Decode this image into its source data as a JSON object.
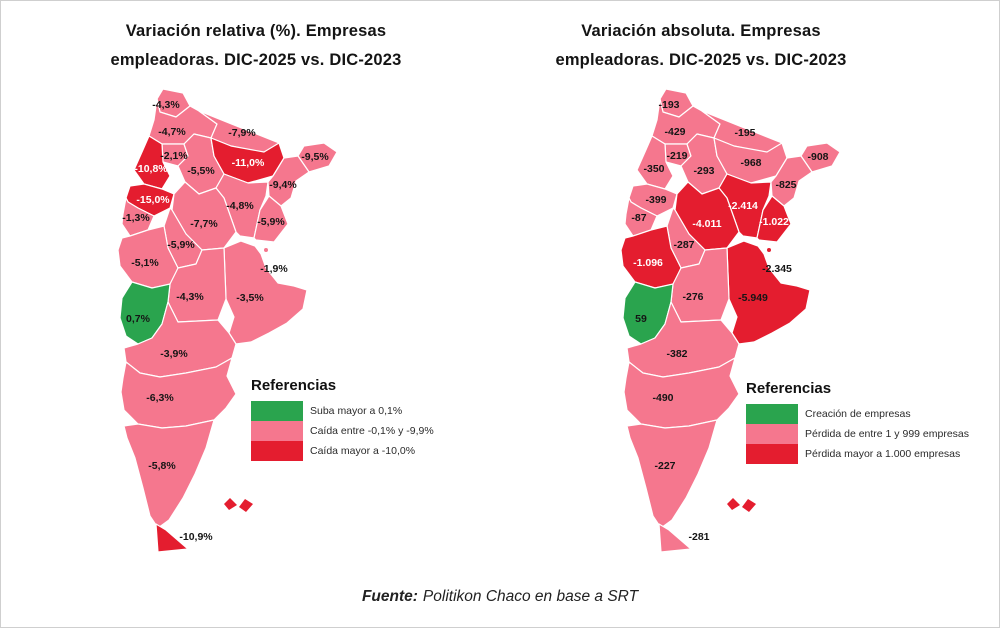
{
  "colors": {
    "green": "#2aa44e",
    "pink": "#f5778e",
    "red": "#e41d2f",
    "label_dark": "#151515",
    "label_light": "#ffffff",
    "province_border": "#ffffff",
    "frame": "#cfcfcf"
  },
  "footer": {
    "source_label": "Fuente:",
    "source_text": "Politikon Chaco en base a SRT"
  },
  "chart_data": [
    {
      "type": "heatmap",
      "subtype": "choropleth-map-argentina-provinces",
      "title": "Variación relativa (%). Empresas empleadoras. DIC-2025 vs. DIC-2023",
      "title_lines": [
        "Variación relativa (%). Empresas",
        "empleadoras. DIC-2025 vs. DIC-2023"
      ],
      "unit": "percent",
      "legend": {
        "title": "Referencias",
        "position": "bottom-right-of-map",
        "items": [
          {
            "color_key": "green",
            "label": "Suba mayor a 0,1%"
          },
          {
            "color_key": "pink",
            "label": "Caída entre -0,1% y -9,9%"
          },
          {
            "color_key": "red",
            "label": "Caída mayor a -10,0%"
          }
        ]
      },
      "series": [
        {
          "key": "jujuy",
          "province": "Jujuy",
          "label": "-4,3%",
          "value": -4.3,
          "category": "pink",
          "text": "dark"
        },
        {
          "key": "salta",
          "province": "Salta",
          "label": "-4,7%",
          "value": -4.7,
          "category": "pink",
          "text": "dark"
        },
        {
          "key": "formosa",
          "province": "Formosa",
          "label": "-7,9%",
          "value": -7.9,
          "category": "pink",
          "text": "dark"
        },
        {
          "key": "tucuman",
          "province": "Tucumán",
          "label": "-2,1%",
          "value": -2.1,
          "category": "pink",
          "text": "dark"
        },
        {
          "key": "catamarca",
          "province": "Catamarca",
          "label": "-10,8%",
          "value": -10.8,
          "category": "red",
          "text": "light"
        },
        {
          "key": "santiago-del-estero",
          "province": "Santiago del Estero",
          "label": "-5,5%",
          "value": -5.5,
          "category": "pink",
          "text": "dark"
        },
        {
          "key": "chaco",
          "province": "Chaco",
          "label": "-11,0%",
          "value": -11.0,
          "category": "red",
          "text": "light"
        },
        {
          "key": "misiones",
          "province": "Misiones",
          "label": "-9,5%",
          "value": -9.5,
          "category": "pink",
          "text": "dark"
        },
        {
          "key": "corrientes",
          "province": "Corrientes",
          "label": "-9,4%",
          "value": -9.4,
          "category": "pink",
          "text": "dark"
        },
        {
          "key": "la-rioja",
          "province": "La Rioja",
          "label": "-15,0%",
          "value": -15.0,
          "category": "red",
          "text": "light"
        },
        {
          "key": "san-juan",
          "province": "San Juan",
          "label": "-1,3%",
          "value": -1.3,
          "category": "pink",
          "text": "dark"
        },
        {
          "key": "santa-fe",
          "province": "Santa Fe",
          "label": "-4,8%",
          "value": -4.8,
          "category": "pink",
          "text": "dark"
        },
        {
          "key": "cordoba",
          "province": "Córdoba",
          "label": "-7,7%",
          "value": -7.7,
          "category": "pink",
          "text": "dark"
        },
        {
          "key": "entre-rios",
          "province": "Entre Ríos",
          "label": "-5,9%",
          "value": -5.9,
          "category": "pink",
          "text": "dark"
        },
        {
          "key": "san-luis",
          "province": "San Luis",
          "label": "-5,9%",
          "value": -5.9,
          "category": "pink",
          "text": "dark"
        },
        {
          "key": "mendoza",
          "province": "Mendoza",
          "label": "-5,1%",
          "value": -5.1,
          "category": "pink",
          "text": "dark"
        },
        {
          "key": "caba",
          "province": "CABA",
          "label": "-1,9%",
          "value": -1.9,
          "category": "pink",
          "text": "dark"
        },
        {
          "key": "buenos-aires",
          "province": "Buenos Aires",
          "label": "-3,5%",
          "value": -3.5,
          "category": "pink",
          "text": "dark"
        },
        {
          "key": "la-pampa",
          "province": "La Pampa",
          "label": "-4,3%",
          "value": -4.3,
          "category": "pink",
          "text": "dark"
        },
        {
          "key": "neuquen",
          "province": "Neuquén",
          "label": "0,7%",
          "value": 0.7,
          "category": "green",
          "text": "dark"
        },
        {
          "key": "rio-negro",
          "province": "Río Negro",
          "label": "-3,9%",
          "value": -3.9,
          "category": "pink",
          "text": "dark"
        },
        {
          "key": "chubut",
          "province": "Chubut",
          "label": "-6,3%",
          "value": -6.3,
          "category": "pink",
          "text": "dark"
        },
        {
          "key": "santa-cruz",
          "province": "Santa Cruz",
          "label": "-5,8%",
          "value": -5.8,
          "category": "pink",
          "text": "dark"
        },
        {
          "key": "tierra-del-fuego",
          "province": "Tierra del Fuego",
          "label": "-10,9%",
          "value": -10.9,
          "category": "red",
          "text": "dark"
        }
      ]
    },
    {
      "type": "heatmap",
      "subtype": "choropleth-map-argentina-provinces",
      "title": "Variación absoluta. Empresas empleadoras. DIC-2025 vs. DIC-2023",
      "title_lines": [
        "Variación absoluta. Empresas",
        "empleadoras. DIC-2025 vs. DIC-2023"
      ],
      "unit": "companies",
      "legend": {
        "title": "Referencias",
        "position": "bottom-right-of-map",
        "items": [
          {
            "color_key": "green",
            "label": "Creación de empresas"
          },
          {
            "color_key": "pink",
            "label": "Pérdida de entre 1 y 999 empresas"
          },
          {
            "color_key": "red",
            "label": "Pérdida mayor a 1.000 empresas"
          }
        ]
      },
      "series": [
        {
          "key": "jujuy",
          "province": "Jujuy",
          "label": "-193",
          "value": -193,
          "category": "pink",
          "text": "dark"
        },
        {
          "key": "salta",
          "province": "Salta",
          "label": "-429",
          "value": -429,
          "category": "pink",
          "text": "dark"
        },
        {
          "key": "formosa",
          "province": "Formosa",
          "label": "-195",
          "value": -195,
          "category": "pink",
          "text": "dark"
        },
        {
          "key": "tucuman",
          "province": "Tucumán",
          "label": "-219",
          "value": -219,
          "category": "pink",
          "text": "dark"
        },
        {
          "key": "catamarca",
          "province": "Catamarca",
          "label": "-350",
          "value": -350,
          "category": "pink",
          "text": "dark"
        },
        {
          "key": "santiago-del-estero",
          "province": "Santiago del Estero",
          "label": "-293",
          "value": -293,
          "category": "pink",
          "text": "dark"
        },
        {
          "key": "chaco",
          "province": "Chaco",
          "label": "-968",
          "value": -968,
          "category": "pink",
          "text": "dark"
        },
        {
          "key": "misiones",
          "province": "Misiones",
          "label": "-908",
          "value": -908,
          "category": "pink",
          "text": "dark"
        },
        {
          "key": "corrientes",
          "province": "Corrientes",
          "label": "-825",
          "value": -825,
          "category": "pink",
          "text": "dark"
        },
        {
          "key": "la-rioja",
          "province": "La Rioja",
          "label": "-399",
          "value": -399,
          "category": "pink",
          "text": "dark"
        },
        {
          "key": "san-juan",
          "province": "San Juan",
          "label": "-87",
          "value": -87,
          "category": "pink",
          "text": "dark"
        },
        {
          "key": "santa-fe",
          "province": "Santa Fe",
          "label": "-2.414",
          "value": -2414,
          "category": "red",
          "text": "light"
        },
        {
          "key": "cordoba",
          "province": "Córdoba",
          "label": "-4.011",
          "value": -4011,
          "category": "red",
          "text": "light"
        },
        {
          "key": "entre-rios",
          "province": "Entre Ríos",
          "label": "-1.022",
          "value": -1022,
          "category": "red",
          "text": "light"
        },
        {
          "key": "san-luis",
          "province": "San Luis",
          "label": "-287",
          "value": -287,
          "category": "pink",
          "text": "dark"
        },
        {
          "key": "mendoza",
          "province": "Mendoza",
          "label": "-1.096",
          "value": -1096,
          "category": "red",
          "text": "light"
        },
        {
          "key": "caba",
          "province": "CABA",
          "label": "-2.345",
          "value": -2345,
          "category": "red",
          "text": "dark"
        },
        {
          "key": "buenos-aires",
          "province": "Buenos Aires",
          "label": "-5.949",
          "value": -5949,
          "category": "red",
          "text": "dark"
        },
        {
          "key": "la-pampa",
          "province": "La Pampa",
          "label": "-276",
          "value": -276,
          "category": "pink",
          "text": "dark"
        },
        {
          "key": "neuquen",
          "province": "Neuquén",
          "label": "59",
          "value": 59,
          "category": "green",
          "text": "dark"
        },
        {
          "key": "rio-negro",
          "province": "Río Negro",
          "label": "-382",
          "value": -382,
          "category": "pink",
          "text": "dark"
        },
        {
          "key": "chubut",
          "province": "Chubut",
          "label": "-490",
          "value": -490,
          "category": "pink",
          "text": "dark"
        },
        {
          "key": "santa-cruz",
          "province": "Santa Cruz",
          "label": "-227",
          "value": -227,
          "category": "pink",
          "text": "dark"
        },
        {
          "key": "tierra-del-fuego",
          "province": "Tierra del Fuego",
          "label": "-281",
          "value": -281,
          "category": "pink",
          "text": "dark"
        }
      ]
    }
  ]
}
